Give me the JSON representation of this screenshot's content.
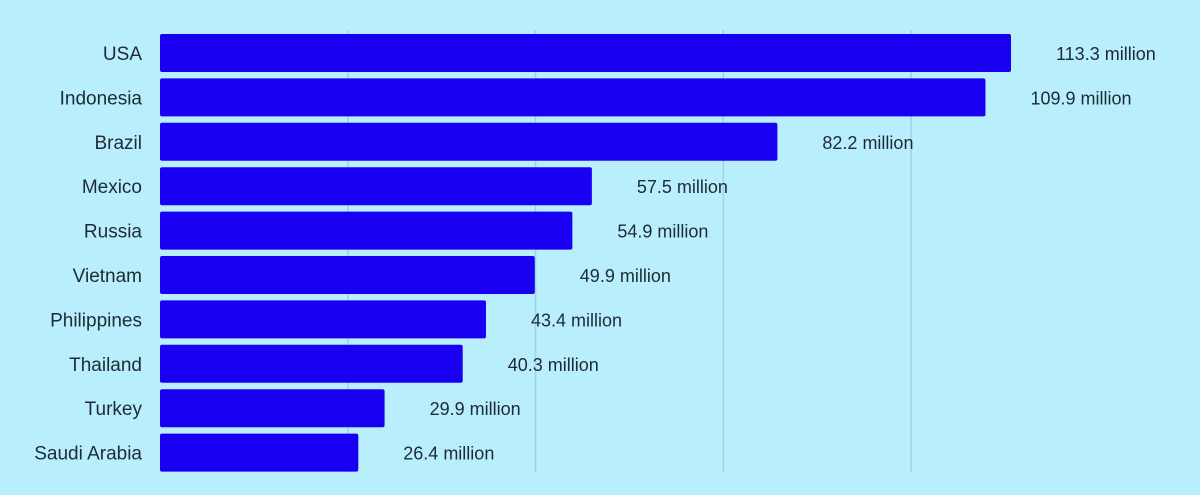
{
  "chart_data": {
    "type": "bar",
    "orientation": "horizontal",
    "categories": [
      "USA",
      "Indonesia",
      "Brazil",
      "Mexico",
      "Russia",
      "Vietnam",
      "Philippines",
      "Thailand",
      "Turkey",
      "Saudi Arabia"
    ],
    "values": [
      113.3,
      109.9,
      82.2,
      57.5,
      54.9,
      49.9,
      43.4,
      40.3,
      29.9,
      26.4
    ],
    "value_labels": [
      "113.3 million",
      "109.9 million",
      "82.2 million",
      "57.5 million",
      "54.9 million",
      "49.9 million",
      "43.4 million",
      "40.3 million",
      "29.9 million",
      "26.4 million"
    ],
    "unit": "million",
    "xlim": [
      0,
      120
    ],
    "gridlines": [
      25,
      50,
      75,
      100
    ],
    "grid": true,
    "colors": {
      "bar": "#1a00f2",
      "background": "#b9eefc",
      "grid": "#9dd3ea",
      "text": "#1e2a36"
    }
  }
}
